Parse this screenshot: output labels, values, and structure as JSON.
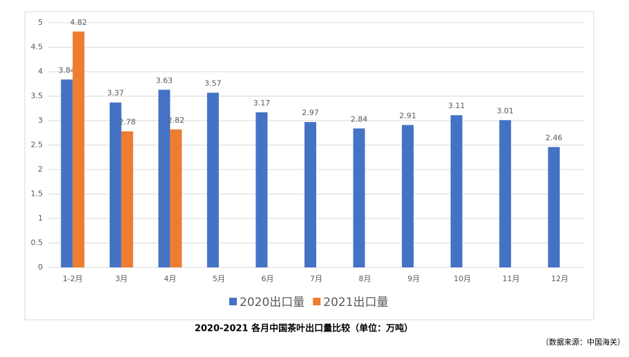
{
  "chart_data": {
    "type": "bar",
    "title": "2020-2021 各月中国茶叶出口量比较（单位：万吨）",
    "source": "（数据来源：中国海关）",
    "categories": [
      "1-2月",
      "3月",
      "4月",
      "5月",
      "6月",
      "7月",
      "8月",
      "9月",
      "10月",
      "11月",
      "12月"
    ],
    "series": [
      {
        "name": "2020出口量",
        "color": "#4472c4",
        "values": [
          3.84,
          3.37,
          3.63,
          3.57,
          3.17,
          2.97,
          2.84,
          2.91,
          3.11,
          3.01,
          2.46
        ]
      },
      {
        "name": "2021出口量",
        "color": "#ed7d31",
        "values": [
          4.82,
          2.78,
          2.82,
          null,
          null,
          null,
          null,
          null,
          null,
          null,
          null
        ]
      }
    ],
    "ylim": [
      0,
      5
    ],
    "yticks": [
      0,
      0.5,
      1,
      1.5,
      2,
      2.5,
      3,
      3.5,
      4,
      4.5,
      5
    ],
    "grid": true
  }
}
